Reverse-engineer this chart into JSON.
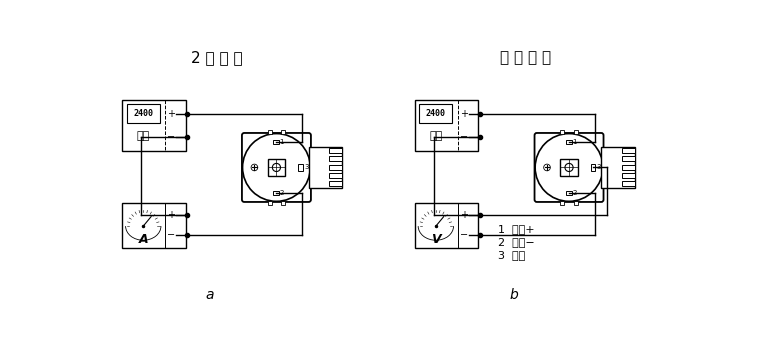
{
  "title_left": "2 线 电 流",
  "title_right": "电 压 输 出",
  "label_a": "a",
  "label_b": "b",
  "legend_1": "1  电源+",
  "legend_2": "2  电源−",
  "legend_3": "3  输出",
  "power_label": "电源",
  "power_display": "2400",
  "bg_color": "#ffffff",
  "line_color": "#000000",
  "fig_width": 7.67,
  "fig_height": 3.56
}
